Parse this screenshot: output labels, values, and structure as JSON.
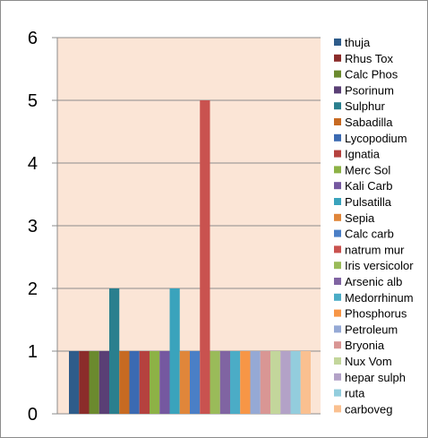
{
  "chart_data": {
    "type": "bar",
    "ylim": [
      0,
      6
    ],
    "y_ticks": [
      0,
      1,
      2,
      3,
      4,
      5,
      6
    ],
    "grid": true,
    "legend_position": "right",
    "series": [
      {
        "name": "thuja",
        "value": 1,
        "color": "#2E5C8A"
      },
      {
        "name": "Rhus Tox",
        "value": 1,
        "color": "#8B2C2A"
      },
      {
        "name": "Calc Phos",
        "value": 1,
        "color": "#6B8A2E"
      },
      {
        "name": "Psorinum",
        "value": 1,
        "color": "#5A3F75"
      },
      {
        "name": "Sulphur",
        "value": 2,
        "color": "#2A7F8E"
      },
      {
        "name": "Sabadilla",
        "value": 1,
        "color": "#C76A22"
      },
      {
        "name": "Lycopodium",
        "value": 1,
        "color": "#3B6AB2"
      },
      {
        "name": "Ignatia",
        "value": 1,
        "color": "#B5413E"
      },
      {
        "name": "Merc Sol",
        "value": 1,
        "color": "#8DB246"
      },
      {
        "name": "Kali Carb",
        "value": 1,
        "color": "#7558A0"
      },
      {
        "name": "Pulsatilla",
        "value": 2,
        "color": "#3AA3BC"
      },
      {
        "name": "Sepia",
        "value": 1,
        "color": "#E0863A"
      },
      {
        "name": "Calc carb",
        "value": 1,
        "color": "#4A7FC6"
      },
      {
        "name": "natrum mur",
        "value": 5,
        "color": "#C9524F"
      },
      {
        "name": "Iris versicolor",
        "value": 1,
        "color": "#9ABB59"
      },
      {
        "name": "Arsenic alb",
        "value": 1,
        "color": "#8064A2"
      },
      {
        "name": "Medorrhinum",
        "value": 1,
        "color": "#4BACC6"
      },
      {
        "name": "Phosphorus",
        "value": 1,
        "color": "#F79646"
      },
      {
        "name": "Petroleum",
        "value": 1,
        "color": "#95A9D5"
      },
      {
        "name": "Bryonia",
        "value": 1,
        "color": "#D99694"
      },
      {
        "name": "Nux Vom",
        "value": 1,
        "color": "#C3D69B"
      },
      {
        "name": "hepar sulph",
        "value": 1,
        "color": "#B3A2C7"
      },
      {
        "name": "ruta",
        "value": 1,
        "color": "#93CDDD"
      },
      {
        "name": "carboveg",
        "value": 1,
        "color": "#FAC090"
      }
    ],
    "plot_background": "#FBE5D6"
  }
}
